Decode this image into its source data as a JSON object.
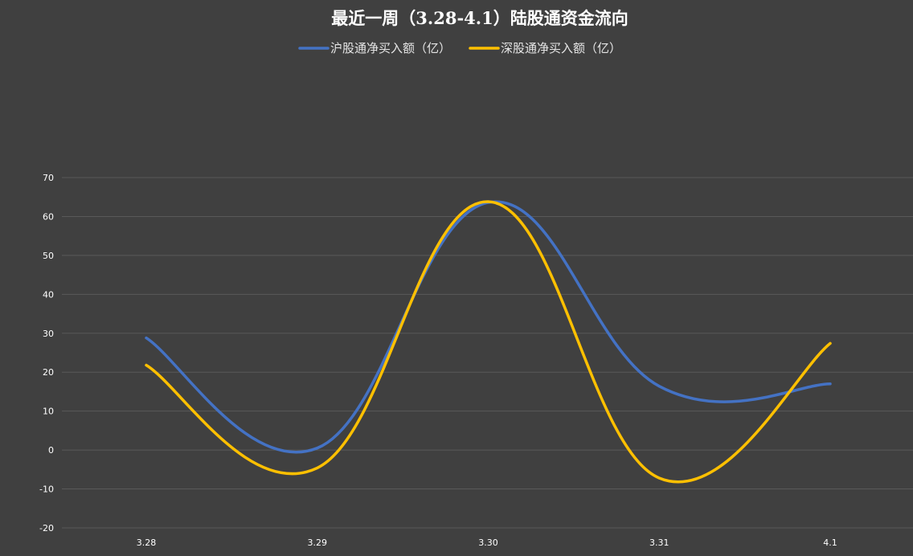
{
  "chart_data": {
    "type": "line",
    "title": "最近一周（3.28-4.1）陆股通资金流向",
    "categories": [
      "3.28",
      "3.29",
      "3.30",
      "3.31",
      "4.1"
    ],
    "series": [
      {
        "name": "沪股通净买入额（亿）",
        "color": "#4472c4",
        "values": [
          28.8,
          0.5,
          63.6,
          16.4,
          17.0
        ]
      },
      {
        "name": "深股通净买入额（亿）",
        "color": "#ffc000",
        "values": [
          21.8,
          -4.6,
          63.8,
          -7.2,
          27.4
        ]
      }
    ],
    "ylim": [
      -20,
      70
    ],
    "yticks": [
      70,
      60,
      50,
      40,
      30,
      20,
      10,
      0,
      -10,
      -20
    ],
    "smooth": true,
    "grid": true,
    "legend_position": "top-center",
    "background_color": "#404040",
    "grid_color": "#595959"
  }
}
